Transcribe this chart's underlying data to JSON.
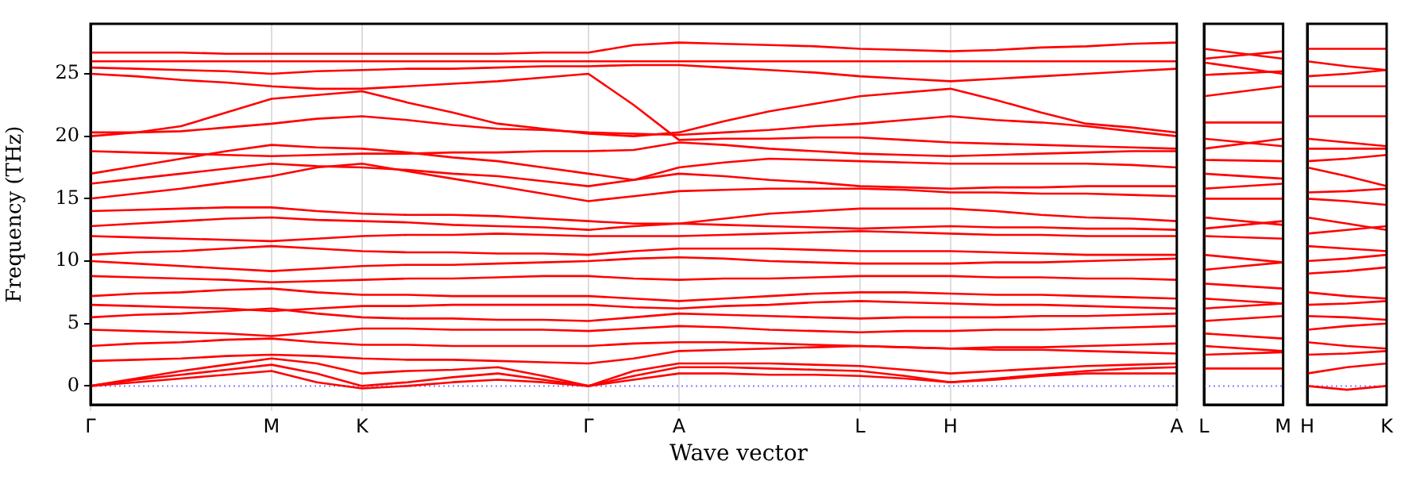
{
  "chart_data": [
    {
      "type": "line",
      "xlabel": "Wave vector",
      "ylabel": "Frequency (THz)",
      "categories": [
        "Γ",
        null,
        null,
        null,
        "M",
        null,
        "K",
        null,
        null,
        null,
        null,
        "Γ",
        null,
        "A",
        null,
        null,
        null,
        "L",
        null,
        "H",
        null,
        null,
        null,
        null,
        "A"
      ],
      "ylim": [
        -1.5,
        29
      ],
      "yticks": [
        0,
        5,
        10,
        15,
        20,
        25
      ],
      "grid": "x",
      "legend": false,
      "marker": "none",
      "line_style": "solid",
      "ref_lines": [
        {
          "axis": "y",
          "value": 0,
          "color": "#8080ff",
          "line_style": "dotted"
        }
      ],
      "series": [
        {
          "color": "#ff0000",
          "values": [
            26.7,
            26.7,
            26.7,
            26.6,
            26.6,
            26.6,
            26.6,
            26.6,
            26.6,
            26.6,
            26.7,
            26.7,
            27.3,
            27.5,
            27.4,
            27.3,
            27.2,
            27.0,
            26.9,
            26.8,
            26.9,
            27.1,
            27.2,
            27.4,
            27.5
          ]
        },
        {
          "color": "#ff0000",
          "values": [
            26.0,
            26.0,
            26.0,
            26.0,
            26.0,
            26.0,
            26.0,
            26.0,
            26.0,
            26.0,
            26.0,
            26.0,
            26.0,
            26.0,
            26.0,
            26.0,
            26.0,
            26.0,
            26.0,
            26.0,
            26.0,
            26.0,
            26.0,
            26.0,
            26.0
          ]
        },
        {
          "color": "#ff0000",
          "values": [
            25.5,
            25.4,
            25.3,
            25.2,
            25.0,
            25.2,
            25.3,
            25.4,
            25.4,
            25.5,
            25.6,
            25.6,
            25.7,
            25.7,
            25.5,
            25.3,
            25.1,
            24.8,
            24.6,
            24.4,
            24.6,
            24.8,
            25.0,
            25.2,
            25.4
          ]
        },
        {
          "color": "#ff0000",
          "values": [
            25.0,
            24.8,
            24.5,
            24.3,
            24.0,
            23.8,
            23.8,
            24.0,
            24.2,
            24.4,
            24.7,
            25.0,
            22.5,
            19.7,
            19.8,
            19.8,
            19.9,
            19.9,
            19.7,
            19.5,
            19.4,
            19.3,
            19.2,
            19.1,
            19.0
          ]
        },
        {
          "color": "#ff0000",
          "values": [
            20.0,
            20.3,
            20.8,
            21.9,
            23.0,
            23.3,
            23.6,
            22.7,
            21.9,
            21.0,
            20.6,
            20.2,
            20.0,
            20.3,
            21.2,
            22.0,
            22.6,
            23.2,
            23.5,
            23.8,
            22.9,
            21.9,
            21.0,
            20.7,
            20.3
          ]
        },
        {
          "color": "#ff0000",
          "values": [
            20.3,
            20.3,
            20.4,
            20.7,
            21.0,
            21.4,
            21.6,
            21.3,
            20.9,
            20.6,
            20.5,
            20.3,
            20.2,
            20.1,
            20.3,
            20.5,
            20.8,
            21.0,
            21.3,
            21.6,
            21.3,
            21.1,
            20.8,
            20.4,
            20.0
          ]
        },
        {
          "color": "#ff0000",
          "values": [
            18.8,
            18.7,
            18.6,
            18.5,
            18.4,
            18.5,
            18.6,
            18.6,
            18.7,
            18.7,
            18.8,
            18.8,
            18.9,
            19.5,
            19.3,
            19.0,
            18.8,
            18.6,
            18.5,
            18.4,
            18.5,
            18.6,
            18.7,
            18.8,
            18.8
          ]
        },
        {
          "color": "#ff0000",
          "values": [
            17.0,
            17.6,
            18.2,
            18.8,
            19.3,
            19.1,
            19.0,
            18.7,
            18.3,
            18.0,
            17.5,
            17.0,
            16.5,
            17.5,
            17.9,
            18.2,
            18.1,
            18.0,
            17.9,
            17.8,
            17.8,
            17.8,
            17.8,
            17.7,
            17.5
          ]
        },
        {
          "color": "#ff0000",
          "values": [
            16.2,
            16.6,
            17.0,
            17.4,
            17.8,
            17.6,
            17.5,
            17.3,
            17.0,
            16.8,
            16.4,
            16.0,
            16.5,
            17.0,
            16.8,
            16.5,
            16.3,
            16.0,
            15.9,
            15.8,
            15.9,
            15.9,
            16.0,
            16.0,
            16.0
          ]
        },
        {
          "color": "#ff0000",
          "values": [
            15.0,
            15.4,
            15.8,
            16.3,
            16.8,
            17.5,
            17.8,
            17.2,
            16.6,
            16.0,
            15.4,
            14.8,
            15.2,
            15.6,
            15.7,
            15.8,
            15.8,
            15.8,
            15.7,
            15.5,
            15.5,
            15.4,
            15.4,
            15.3,
            15.2
          ]
        },
        {
          "color": "#ff0000",
          "values": [
            14.0,
            14.1,
            14.2,
            14.3,
            14.3,
            14.0,
            13.8,
            13.7,
            13.7,
            13.6,
            13.4,
            13.2,
            13.0,
            13.0,
            13.4,
            13.8,
            14.0,
            14.2,
            14.2,
            14.2,
            14.0,
            13.7,
            13.5,
            13.4,
            13.2
          ]
        },
        {
          "color": "#ff0000",
          "values": [
            12.8,
            13.0,
            13.2,
            13.4,
            13.5,
            13.3,
            13.2,
            13.1,
            12.9,
            12.8,
            12.7,
            12.5,
            12.8,
            13.0,
            12.9,
            12.8,
            12.7,
            12.6,
            12.7,
            12.8,
            12.7,
            12.7,
            12.6,
            12.6,
            12.5
          ]
        },
        {
          "color": "#ff0000",
          "values": [
            12.0,
            11.9,
            11.8,
            11.7,
            11.6,
            11.8,
            12.0,
            12.1,
            12.1,
            12.2,
            12.1,
            12.0,
            12.0,
            12.0,
            12.1,
            12.2,
            12.3,
            12.4,
            12.3,
            12.2,
            12.1,
            12.1,
            12.0,
            12.0,
            12.0
          ]
        },
        {
          "color": "#ff0000",
          "values": [
            10.5,
            10.7,
            10.8,
            11.0,
            11.2,
            11.0,
            10.8,
            10.7,
            10.7,
            10.6,
            10.6,
            10.5,
            10.8,
            11.0,
            11.0,
            11.0,
            10.9,
            10.8,
            10.8,
            10.8,
            10.7,
            10.6,
            10.5,
            10.5,
            10.5
          ]
        },
        {
          "color": "#ff0000",
          "values": [
            10.0,
            9.8,
            9.6,
            9.4,
            9.2,
            9.4,
            9.6,
            9.7,
            9.7,
            9.8,
            9.9,
            10.0,
            10.2,
            10.3,
            10.2,
            10.0,
            9.9,
            9.8,
            9.8,
            9.8,
            9.9,
            9.9,
            10.0,
            10.1,
            10.2
          ]
        },
        {
          "color": "#ff0000",
          "values": [
            8.8,
            8.7,
            8.6,
            8.5,
            8.3,
            8.4,
            8.5,
            8.6,
            8.6,
            8.7,
            8.8,
            8.8,
            8.6,
            8.5,
            8.6,
            8.6,
            8.7,
            8.8,
            8.8,
            8.8,
            8.7,
            8.7,
            8.6,
            8.6,
            8.5
          ]
        },
        {
          "color": "#ff0000",
          "values": [
            7.2,
            7.4,
            7.5,
            7.7,
            7.8,
            7.5,
            7.3,
            7.3,
            7.2,
            7.2,
            7.2,
            7.2,
            7.0,
            6.8,
            7.0,
            7.2,
            7.4,
            7.5,
            7.5,
            7.4,
            7.3,
            7.3,
            7.2,
            7.1,
            7.0
          ]
        },
        {
          "color": "#ff0000",
          "values": [
            6.5,
            6.4,
            6.3,
            6.2,
            6.0,
            6.2,
            6.4,
            6.4,
            6.5,
            6.5,
            6.5,
            6.5,
            6.3,
            6.2,
            6.4,
            6.5,
            6.7,
            6.8,
            6.7,
            6.6,
            6.5,
            6.5,
            6.4,
            6.3,
            6.2
          ]
        },
        {
          "color": "#ff0000",
          "values": [
            5.5,
            5.7,
            5.8,
            6.0,
            6.2,
            5.8,
            5.5,
            5.4,
            5.4,
            5.3,
            5.3,
            5.2,
            5.5,
            5.8,
            5.7,
            5.6,
            5.5,
            5.4,
            5.5,
            5.5,
            5.5,
            5.6,
            5.6,
            5.7,
            5.8
          ]
        },
        {
          "color": "#ff0000",
          "values": [
            4.5,
            4.4,
            4.3,
            4.2,
            4.0,
            4.3,
            4.6,
            4.6,
            4.5,
            4.5,
            4.5,
            4.4,
            4.6,
            4.8,
            4.7,
            4.5,
            4.4,
            4.3,
            4.4,
            4.4,
            4.5,
            4.5,
            4.6,
            4.7,
            4.8
          ]
        },
        {
          "color": "#ff0000",
          "values": [
            3.2,
            3.4,
            3.5,
            3.7,
            3.8,
            3.5,
            3.3,
            3.3,
            3.2,
            3.2,
            3.2,
            3.2,
            3.4,
            3.5,
            3.5,
            3.4,
            3.3,
            3.2,
            3.1,
            3.0,
            3.1,
            3.1,
            3.2,
            3.3,
            3.4
          ]
        },
        {
          "color": "#ff0000",
          "values": [
            2.0,
            2.1,
            2.2,
            2.4,
            2.5,
            2.4,
            2.2,
            2.1,
            2.1,
            2.0,
            1.9,
            1.8,
            2.2,
            2.8,
            2.9,
            3.0,
            3.1,
            3.2,
            3.1,
            3.0,
            2.9,
            2.9,
            2.8,
            2.7,
            2.6
          ]
        },
        {
          "color": "#ff0000",
          "values": [
            0,
            0.6,
            1.2,
            1.7,
            2.2,
            1.8,
            1.0,
            1.2,
            1.3,
            1.5,
            0.8,
            0,
            1.2,
            1.8,
            1.8,
            1.8,
            1.7,
            1.6,
            1.3,
            1.0,
            1.2,
            1.4,
            1.6,
            1.7,
            1.8
          ]
        },
        {
          "color": "#ff0000",
          "values": [
            0,
            0.5,
            0.9,
            1.3,
            1.7,
            1.0,
            0,
            0.3,
            0.7,
            1.0,
            0.5,
            0,
            0.8,
            1.5,
            1.5,
            1.4,
            1.3,
            1.2,
            0.8,
            0.3,
            0.6,
            0.9,
            1.2,
            1.4,
            1.5
          ]
        },
        {
          "color": "#ff0000",
          "values": [
            0,
            0.3,
            0.6,
            0.9,
            1.2,
            0.3,
            -0.2,
            0.0,
            0.3,
            0.5,
            0.3,
            0,
            0.5,
            1.0,
            1.0,
            0.9,
            0.9,
            0.8,
            0.6,
            0.3,
            0.5,
            0.8,
            1.0,
            1.0,
            1.0
          ]
        }
      ]
    },
    {
      "type": "line",
      "categories": [
        "L",
        "M"
      ],
      "ylim": [
        -1.5,
        29
      ],
      "yticks": [
        0,
        5,
        10,
        15,
        20,
        25
      ],
      "tick_labels": "x",
      "legend": false,
      "marker": "none",
      "line_style": "solid",
      "ref_lines": [
        {
          "axis": "y",
          "value": 0,
          "color": "#8080ff",
          "line_style": "dotted"
        }
      ],
      "series": [
        {
          "color": "#ff0000",
          "values": [
            27.0,
            26.2
          ]
        },
        {
          "color": "#ff0000",
          "values": [
            26.2,
            26.8
          ]
        },
        {
          "color": "#ff0000",
          "values": [
            25.9,
            25.0
          ]
        },
        {
          "color": "#ff0000",
          "values": [
            24.9,
            25.2
          ]
        },
        {
          "color": "#ff0000",
          "values": [
            23.2,
            24.0
          ]
        },
        {
          "color": "#ff0000",
          "values": [
            21.1,
            21.1
          ]
        },
        {
          "color": "#ff0000",
          "values": [
            19.8,
            19.2
          ]
        },
        {
          "color": "#ff0000",
          "values": [
            19.0,
            19.8
          ]
        },
        {
          "color": "#ff0000",
          "values": [
            18.1,
            18.0
          ]
        },
        {
          "color": "#ff0000",
          "values": [
            17.0,
            16.6
          ]
        },
        {
          "color": "#ff0000",
          "values": [
            15.8,
            16.2
          ]
        },
        {
          "color": "#ff0000",
          "values": [
            15.0,
            15.0
          ]
        },
        {
          "color": "#ff0000",
          "values": [
            13.5,
            12.9
          ]
        },
        {
          "color": "#ff0000",
          "values": [
            12.6,
            13.2
          ]
        },
        {
          "color": "#ff0000",
          "values": [
            12.0,
            11.8
          ]
        },
        {
          "color": "#ff0000",
          "values": [
            10.5,
            9.9
          ]
        },
        {
          "color": "#ff0000",
          "values": [
            9.3,
            9.9
          ]
        },
        {
          "color": "#ff0000",
          "values": [
            8.2,
            7.8
          ]
        },
        {
          "color": "#ff0000",
          "values": [
            7.0,
            6.6
          ]
        },
        {
          "color": "#ff0000",
          "values": [
            6.2,
            6.6
          ]
        },
        {
          "color": "#ff0000",
          "values": [
            5.2,
            5.6
          ]
        },
        {
          "color": "#ff0000",
          "values": [
            4.2,
            3.8
          ]
        },
        {
          "color": "#ff0000",
          "values": [
            3.2,
            2.8
          ]
        },
        {
          "color": "#ff0000",
          "values": [
            2.5,
            2.7
          ]
        },
        {
          "color": "#ff0000",
          "values": [
            1.4,
            1.4
          ]
        }
      ]
    },
    {
      "type": "line",
      "categories": [
        "H",
        null,
        "K"
      ],
      "ylim": [
        -1.5,
        29
      ],
      "yticks": [
        0,
        5,
        10,
        15,
        20,
        25
      ],
      "tick_labels": "x",
      "legend": false,
      "marker": "none",
      "line_style": "solid",
      "ref_lines": [
        {
          "axis": "y",
          "value": 0,
          "color": "#8080ff",
          "line_style": "dotted"
        }
      ],
      "series": [
        {
          "color": "#ff0000",
          "values": [
            27.0,
            27.0,
            27.0
          ]
        },
        {
          "color": "#ff0000",
          "values": [
            26.0,
            25.6,
            25.3
          ]
        },
        {
          "color": "#ff0000",
          "values": [
            24.8,
            25.0,
            25.3
          ]
        },
        {
          "color": "#ff0000",
          "values": [
            24.0,
            24.0,
            24.0
          ]
        },
        {
          "color": "#ff0000",
          "values": [
            21.6,
            21.6,
            21.6
          ]
        },
        {
          "color": "#ff0000",
          "values": [
            19.8,
            19.5,
            19.2
          ]
        },
        {
          "color": "#ff0000",
          "values": [
            19.0,
            19.0,
            19.0
          ]
        },
        {
          "color": "#ff0000",
          "values": [
            18.0,
            18.2,
            18.5
          ]
        },
        {
          "color": "#ff0000",
          "values": [
            17.5,
            16.8,
            16.0
          ]
        },
        {
          "color": "#ff0000",
          "values": [
            15.5,
            15.6,
            15.8
          ]
        },
        {
          "color": "#ff0000",
          "values": [
            15.0,
            14.8,
            14.5
          ]
        },
        {
          "color": "#ff0000",
          "values": [
            13.5,
            13.0,
            12.5
          ]
        },
        {
          "color": "#ff0000",
          "values": [
            12.2,
            12.5,
            12.8
          ]
        },
        {
          "color": "#ff0000",
          "values": [
            11.2,
            11.0,
            10.8
          ]
        },
        {
          "color": "#ff0000",
          "values": [
            10.0,
            10.2,
            10.5
          ]
        },
        {
          "color": "#ff0000",
          "values": [
            9.0,
            9.2,
            9.5
          ]
        },
        {
          "color": "#ff0000",
          "values": [
            7.5,
            7.2,
            7.0
          ]
        },
        {
          "color": "#ff0000",
          "values": [
            6.5,
            6.6,
            6.8
          ]
        },
        {
          "color": "#ff0000",
          "values": [
            5.6,
            5.5,
            5.3
          ]
        },
        {
          "color": "#ff0000",
          "values": [
            4.5,
            4.8,
            5.0
          ]
        },
        {
          "color": "#ff0000",
          "values": [
            3.5,
            3.2,
            3.0
          ]
        },
        {
          "color": "#ff0000",
          "values": [
            2.5,
            2.6,
            2.8
          ]
        },
        {
          "color": "#ff0000",
          "values": [
            1.0,
            1.5,
            1.8
          ]
        },
        {
          "color": "#ff0000",
          "values": [
            0,
            -0.3,
            0
          ]
        }
      ]
    }
  ]
}
